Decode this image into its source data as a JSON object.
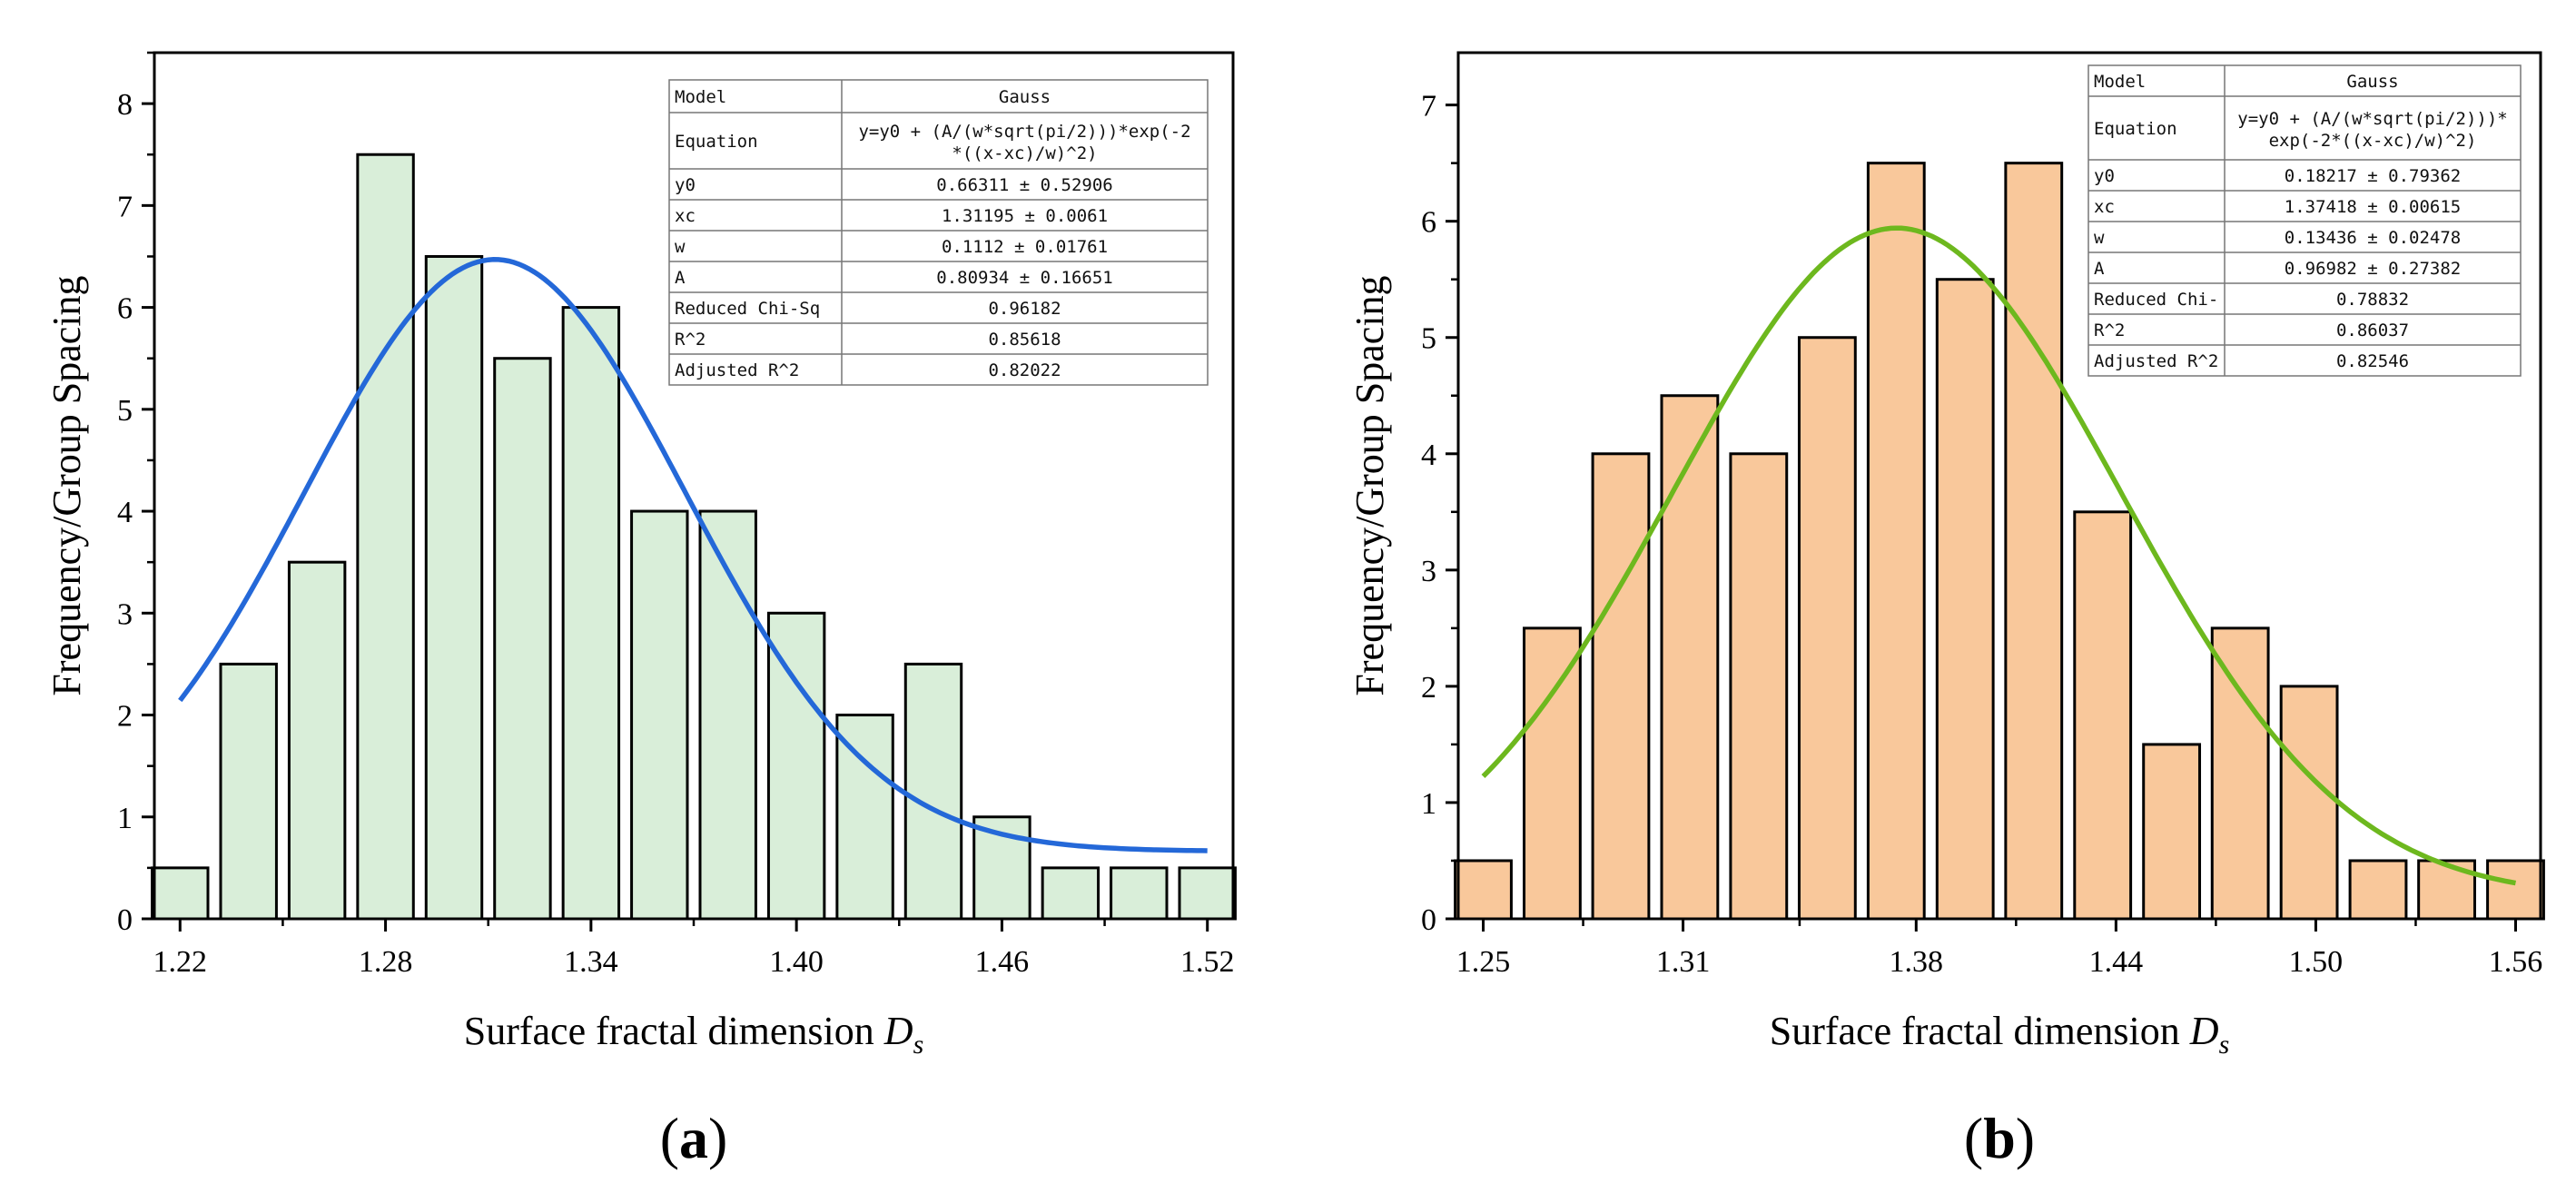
{
  "chart_data": [
    {
      "panel_label": "(a)",
      "type": "bar",
      "xlabel": "Surface fractal dimension ",
      "xlabel_var": "D",
      "xlabel_sub": "s",
      "ylabel": "Frequency/Group Spacing",
      "xlim": [
        1.2125,
        1.5275
      ],
      "ylim": [
        0,
        8.5
      ],
      "xticks": [
        1.22,
        1.28,
        1.34,
        1.4,
        1.46,
        1.52
      ],
      "xtick_labels": [
        "1.22",
        "1.28",
        "1.34",
        "1.40",
        "1.46",
        "1.52"
      ],
      "yticks": [
        0,
        1,
        2,
        3,
        4,
        5,
        6,
        7,
        8
      ],
      "bin_width": 0.02,
      "x": [
        1.22,
        1.24,
        1.26,
        1.28,
        1.3,
        1.32,
        1.34,
        1.36,
        1.38,
        1.4,
        1.42,
        1.44,
        1.46,
        1.48,
        1.5,
        1.52
      ],
      "values": [
        0.5,
        2.5,
        3.5,
        7.5,
        6.5,
        5.5,
        6.0,
        4.0,
        4.0,
        3.0,
        2.0,
        2.5,
        1.0,
        0.5,
        0.5,
        0.5
      ],
      "bar_color": "#d9eed9",
      "fit": {
        "model": "Gauss",
        "y0": 0.66311,
        "xc": 1.31195,
        "w": 0.1112,
        "A": 0.80934,
        "x_range": [
          1.22,
          1.52
        ],
        "color": "#2468d8"
      },
      "table": [
        [
          "Model",
          "Gauss"
        ],
        [
          "Equation",
          "y=y0 + (A/(w*sqrt(pi/2)))*exp(-2|*((x-xc)/w)^2)"
        ],
        [
          "y0",
          "0.66311 ± 0.52906"
        ],
        [
          "xc",
          "1.31195 ± 0.0061"
        ],
        [
          "w",
          "0.1112 ± 0.01761"
        ],
        [
          "A",
          "0.80934 ± 0.16651"
        ],
        [
          "Reduced Chi-Sq",
          "0.96182"
        ],
        [
          "R^2",
          "0.85618"
        ],
        [
          "Adjusted R^2",
          "0.82022"
        ]
      ]
    },
    {
      "panel_label": "(b)",
      "type": "bar",
      "xlabel": "Surface fractal dimension ",
      "xlabel_var": "D",
      "xlabel_sub": "s",
      "ylabel": "Frequency/Group Spacing",
      "xlim": [
        1.2425,
        1.5675
      ],
      "ylim": [
        0,
        7.45
      ],
      "xticks": [
        1.25,
        1.31,
        1.38,
        1.44,
        1.5,
        1.56
      ],
      "xtick_labels": [
        "1.25",
        "1.31",
        "1.38",
        "1.44",
        "1.50",
        "1.56"
      ],
      "yticks": [
        0,
        1,
        2,
        3,
        4,
        5,
        6,
        7
      ],
      "bin_width": 0.02067,
      "x": [
        1.25,
        1.2707,
        1.2913,
        1.312,
        1.3327,
        1.3533,
        1.374,
        1.3947,
        1.4153,
        1.436,
        1.4567,
        1.4773,
        1.498,
        1.5187,
        1.5393,
        1.56
      ],
      "values": [
        0.5,
        2.5,
        4.0,
        4.5,
        4.0,
        5.0,
        6.5,
        5.5,
        6.5,
        3.5,
        1.5,
        2.5,
        2.0,
        0.5,
        0.5,
        0.5
      ],
      "bar_color": "#f9c89b",
      "fit": {
        "model": "Gauss",
        "y0": 0.18217,
        "xc": 1.37418,
        "w": 0.13436,
        "A": 0.96982,
        "x_range": [
          1.25,
          1.56
        ],
        "color": "#6db81e"
      },
      "table": [
        [
          "Model",
          "Gauss"
        ],
        [
          "Equation",
          "y=y0 + (A/(w*sqrt(pi/2)))*|exp(-2*((x-xc)/w)^2)"
        ],
        [
          "y0",
          "0.18217 ± 0.79362"
        ],
        [
          "xc",
          "1.37418 ± 0.00615"
        ],
        [
          "w",
          "0.13436 ± 0.02478"
        ],
        [
          "A",
          "0.96982 ± 0.27382"
        ],
        [
          "Reduced Chi-",
          "0.78832"
        ],
        [
          "R^2",
          "0.86037"
        ],
        [
          "Adjusted R^2",
          "0.82546"
        ]
      ]
    }
  ]
}
